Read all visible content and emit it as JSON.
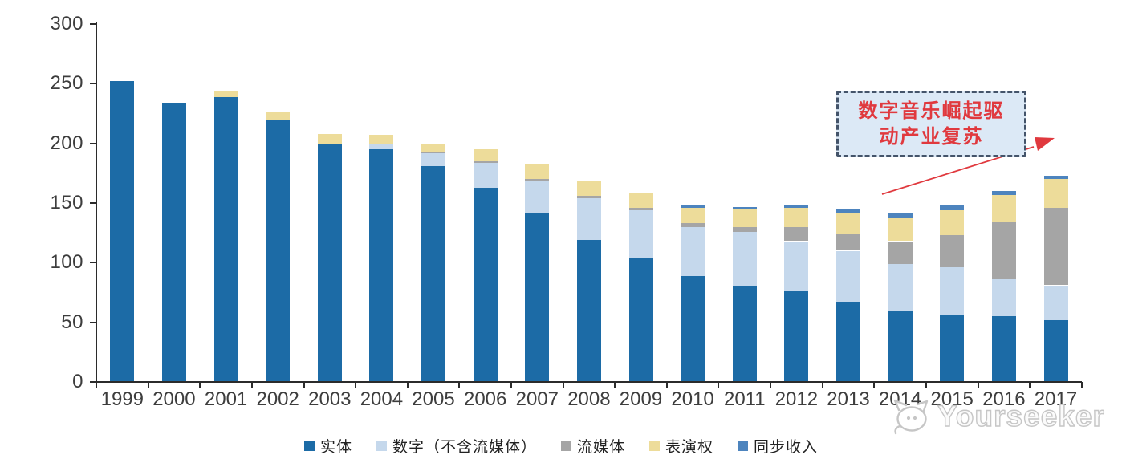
{
  "chart_data": {
    "type": "bar",
    "stacked": true,
    "title": "",
    "xlabel": "",
    "ylabel": "",
    "categories": [
      "1999",
      "2000",
      "2001",
      "2002",
      "2003",
      "2004",
      "2005",
      "2006",
      "2007",
      "2008",
      "2009",
      "2010",
      "2011",
      "2012",
      "2013",
      "2014",
      "2015",
      "2016",
      "2017"
    ],
    "series": [
      {
        "name": "实体",
        "color": "#1C6BA6",
        "values": [
          252,
          234,
          239,
          219,
          200,
          195,
          181,
          163,
          141,
          119,
          104,
          89,
          81,
          76,
          67,
          60,
          56,
          55,
          52
        ]
      },
      {
        "name": "数字（不含流媒体）",
        "color": "#C5D8EC",
        "values": [
          0,
          0,
          0,
          0,
          0,
          4,
          11,
          21,
          27,
          35,
          40,
          41,
          45,
          42,
          43,
          39,
          40,
          31,
          29
        ]
      },
      {
        "name": "流媒体",
        "color": "#A5A5A5",
        "values": [
          0,
          0,
          0,
          0,
          0,
          0,
          1,
          1,
          2,
          2,
          2,
          3,
          4,
          12,
          14,
          19,
          27,
          48,
          65
        ]
      },
      {
        "name": "表演权",
        "color": "#EDDC9A",
        "values": [
          0,
          0,
          5,
          7,
          8,
          8,
          7,
          10,
          12,
          13,
          12,
          13,
          15,
          16,
          17,
          19,
          21,
          23,
          24
        ]
      },
      {
        "name": "同步收入",
        "color": "#4D84BE",
        "values": [
          0,
          0,
          0,
          0,
          0,
          0,
          0,
          0,
          0,
          0,
          0,
          3,
          2,
          3,
          4,
          4,
          4,
          3,
          3
        ]
      }
    ],
    "ylim": [
      0,
      300
    ],
    "ytick_step": 50,
    "yticks": [
      0,
      50,
      100,
      150,
      200,
      250,
      300
    ],
    "grid": false,
    "legend_position": "bottom"
  },
  "annotation": {
    "line1": "数字音乐崛起驱",
    "line2": "动产业复苏",
    "text_color": "#e0393e",
    "box_fill": "#dce9f6",
    "box_border": "#44546a",
    "arrow_color": "#e0393e"
  },
  "watermark": {
    "text": "Yourseeker",
    "icon": "cat-logo-icon",
    "color": "#c6c6c6"
  }
}
